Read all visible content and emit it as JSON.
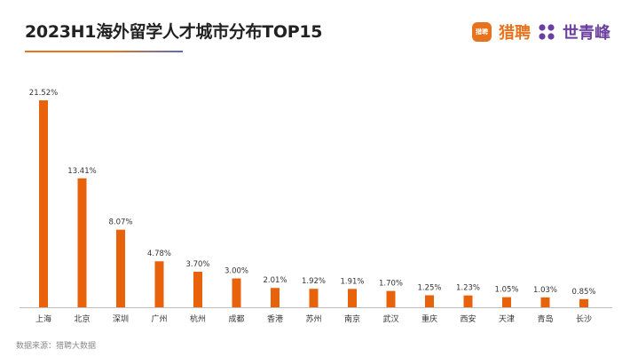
{
  "header": {
    "title": "2023H1海外留学人才城市分布TOP15"
  },
  "brands": {
    "brand1_logo_text": "猎聘",
    "brand1_name": "猎聘",
    "brand2_name": "世青峰",
    "brand1_color": "#e8731d",
    "brand2_color": "#6b3fa0",
    "brand2_icon": "flower-grid-icon"
  },
  "footer": {
    "source": "数据来源：猎聘大数据"
  },
  "chart_data": {
    "type": "bar",
    "categories": [
      "上海",
      "北京",
      "深圳",
      "广州",
      "杭州",
      "成都",
      "香港",
      "苏州",
      "南京",
      "武汉",
      "重庆",
      "西安",
      "天津",
      "青岛",
      "长沙"
    ],
    "values": [
      21.52,
      13.41,
      8.07,
      4.78,
      3.7,
      3.0,
      2.01,
      1.92,
      1.91,
      1.7,
      1.25,
      1.23,
      1.05,
      1.03,
      0.85
    ],
    "value_labels": [
      "21.52%",
      "13.41%",
      "8.07%",
      "4.78%",
      "3.70%",
      "3.00%",
      "2.01%",
      "1.92%",
      "1.91%",
      "1.70%",
      "1.25%",
      "1.23%",
      "1.05%",
      "1.03%",
      "0.85%"
    ],
    "title": "2023H1海外留学人才城市分布TOP15",
    "xlabel": "",
    "ylabel": "",
    "ylim": [
      0,
      22
    ],
    "grid": false,
    "legend": "none",
    "bar_color": "#e8620c",
    "axis_color": "#bfbfbf"
  }
}
